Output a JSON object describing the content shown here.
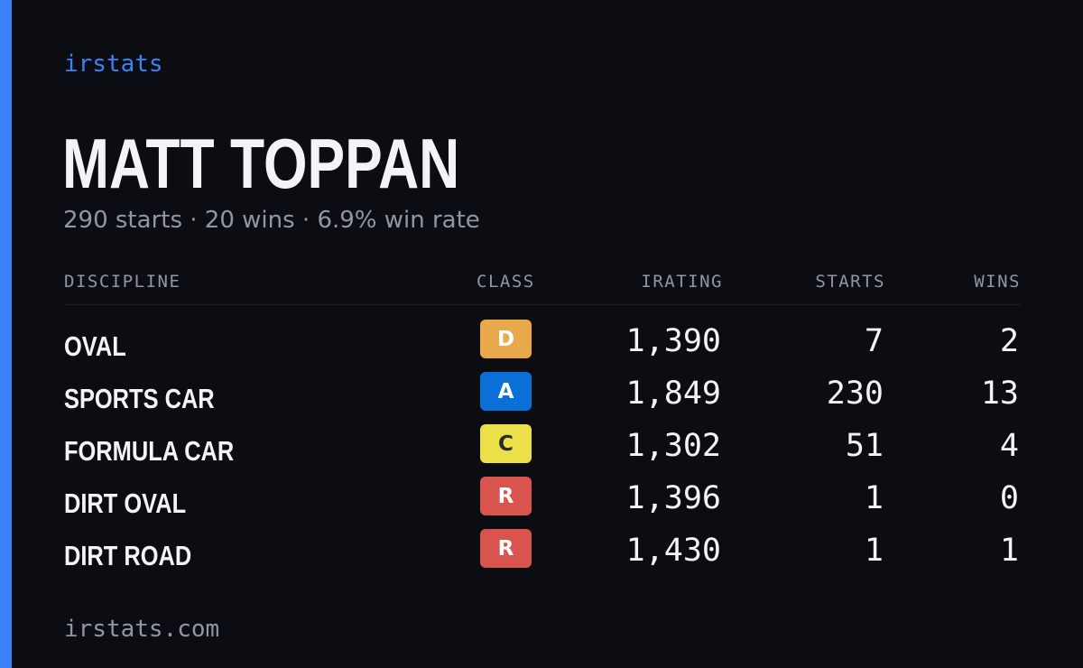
{
  "brand": "irstats",
  "player": {
    "name": "MATT TOPPAN",
    "summary": "290 starts · 20 wins · 6.9% win rate"
  },
  "table": {
    "headers": {
      "discipline": "DISCIPLINE",
      "class": "CLASS",
      "irating": "IRATING",
      "starts": "STARTS",
      "wins": "WINS"
    },
    "rows": [
      {
        "discipline": "OVAL",
        "class": "D",
        "class_bg": "#e8a94a",
        "class_fg": "#ffffff",
        "irating": "1,390",
        "starts": "7",
        "wins": "2"
      },
      {
        "discipline": "SPORTS CAR",
        "class": "A",
        "class_bg": "#0b6fd8",
        "class_fg": "#ffffff",
        "irating": "1,849",
        "starts": "230",
        "wins": "13"
      },
      {
        "discipline": "FORMULA CAR",
        "class": "C",
        "class_bg": "#ece04a",
        "class_fg": "#2a2a2a",
        "irating": "1,302",
        "starts": "51",
        "wins": "4"
      },
      {
        "discipline": "DIRT OVAL",
        "class": "R",
        "class_bg": "#d9534f",
        "class_fg": "#ffffff",
        "irating": "1,396",
        "starts": "1",
        "wins": "0"
      },
      {
        "discipline": "DIRT ROAD",
        "class": "R",
        "class_bg": "#d9534f",
        "class_fg": "#ffffff",
        "irating": "1,430",
        "starts": "1",
        "wins": "1"
      }
    ]
  },
  "footer": {
    "url": "irstats.com"
  },
  "colors": {
    "accent": "#3b82f6",
    "background": "#0b0d13",
    "muted_text": "#8f97a6",
    "primary_text": "#f3f4f6"
  }
}
